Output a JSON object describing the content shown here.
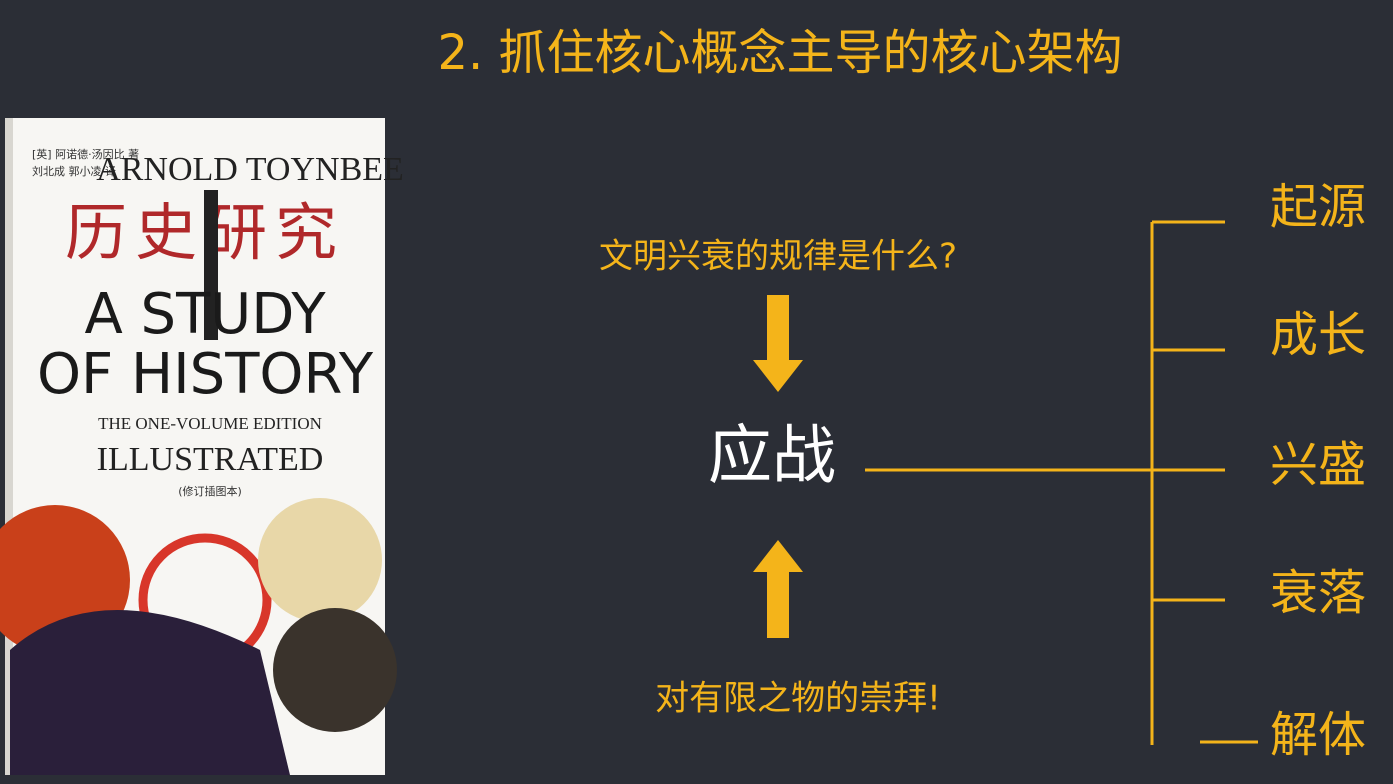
{
  "title": "2. 抓住核心概念主导的核心架构",
  "book": {
    "author_cn": "[英] 阿诺德·汤因比 著",
    "translator_cn": "刘北成 郭小凌 译",
    "author_en": "ARNOLD TOYNBEE",
    "title_cn": "历史研究",
    "title_en_1": "A STUDY",
    "title_en_2": "OF HISTORY",
    "edition": "THE ONE-VOLUME EDITION",
    "illustrated": "ILLUSTRATED",
    "note": "(修订插图本)"
  },
  "question": "文明兴衰的规律是什么?",
  "core": "应战",
  "cause": "对有限之物的崇拜!",
  "stages": [
    "起源",
    "成长",
    "兴盛",
    "衰落",
    "解体"
  ]
}
